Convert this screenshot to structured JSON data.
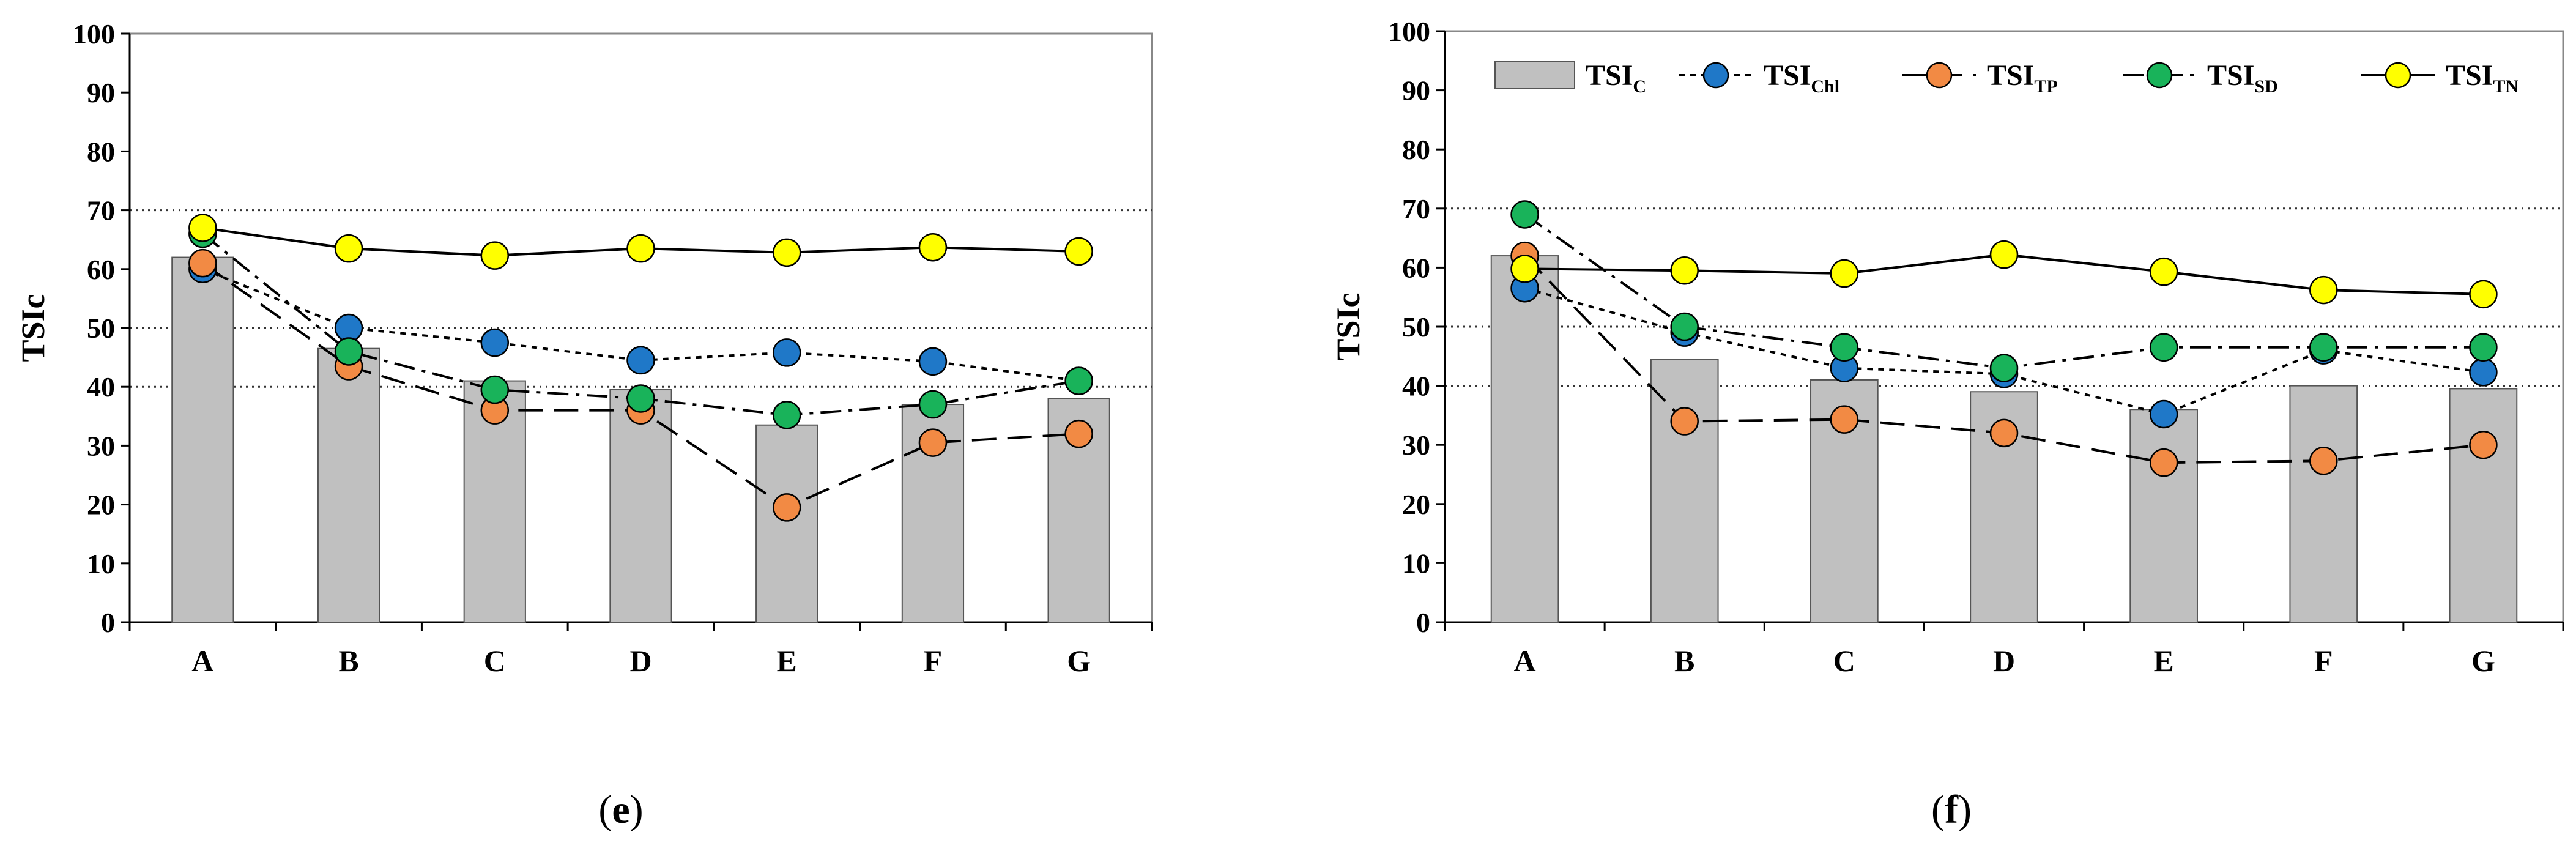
{
  "chart_data": [
    {
      "type": "bar+line",
      "panel_label": "e",
      "ylabel": "TSIc",
      "xlabel": "",
      "ylim": [
        0,
        100
      ],
      "yticks": [
        0,
        10,
        20,
        30,
        40,
        50,
        60,
        70,
        80,
        90,
        100
      ],
      "reference_lines": [
        40,
        50,
        70
      ],
      "categories": [
        "A",
        "B",
        "C",
        "D",
        "E",
        "F",
        "G"
      ],
      "show_legend": false,
      "bars": {
        "name": "TSIC",
        "values": [
          62,
          46.5,
          41,
          39.5,
          33.5,
          37,
          38
        ]
      },
      "series": [
        {
          "name": "TSIChl",
          "color": "#1f78c8",
          "line": "short-dash",
          "values": [
            60,
            50,
            47.5,
            44.5,
            45.8,
            44.3,
            41
          ]
        },
        {
          "name": "TSITP",
          "color": "#f28a44",
          "line": "long-dash",
          "values": [
            61,
            43.5,
            36,
            36,
            19.5,
            30.5,
            32
          ]
        },
        {
          "name": "TSISD",
          "color": "#19b35a",
          "line": "dash-dot",
          "values": [
            66,
            46,
            39.5,
            38,
            35.2,
            37,
            41
          ]
        },
        {
          "name": "TSITN",
          "color": "#ffff00",
          "line": "solid",
          "values": [
            67,
            63.5,
            62.3,
            63.5,
            62.8,
            63.7,
            63
          ]
        }
      ]
    },
    {
      "type": "bar+line",
      "panel_label": "f",
      "ylabel": "TSIc",
      "xlabel": "",
      "ylim": [
        0,
        100
      ],
      "yticks": [
        0,
        10,
        20,
        30,
        40,
        50,
        60,
        70,
        80,
        90,
        100
      ],
      "reference_lines": [
        40,
        50,
        70
      ],
      "categories": [
        "A",
        "B",
        "C",
        "D",
        "E",
        "F",
        "G"
      ],
      "show_legend": true,
      "bars": {
        "name": "TSIC",
        "values": [
          62,
          44.5,
          41,
          39,
          36,
          40,
          39.5
        ]
      },
      "series": [
        {
          "name": "TSIChl",
          "color": "#1f78c8",
          "line": "short-dash",
          "values": [
            56.5,
            49,
            43,
            42,
            35.2,
            46,
            42.3
          ]
        },
        {
          "name": "TSITP",
          "color": "#f28a44",
          "line": "long-dash",
          "values": [
            62,
            34,
            34.3,
            32,
            27,
            27.3,
            30
          ]
        },
        {
          "name": "TSISD",
          "color": "#19b35a",
          "line": "dash-dot",
          "values": [
            69,
            50,
            46.5,
            43,
            46.5,
            46.5,
            46.5
          ]
        },
        {
          "name": "TSITN",
          "color": "#ffff00",
          "line": "solid",
          "values": [
            59.8,
            59.5,
            59,
            62.2,
            59.3,
            56.2,
            55.5
          ]
        }
      ]
    }
  ],
  "legend": [
    {
      "key": "TSIC",
      "base": "TSI",
      "sub": "C",
      "kind": "bar"
    },
    {
      "key": "TSIChl",
      "base": "TSI",
      "sub": "Chl",
      "kind": "line",
      "color": "#1f78c8",
      "line": "short-dash"
    },
    {
      "key": "TSITP",
      "base": "TSI",
      "sub": "TP",
      "kind": "line",
      "color": "#f28a44",
      "line": "long-dash"
    },
    {
      "key": "TSISD",
      "base": "TSI",
      "sub": "SD",
      "kind": "line",
      "color": "#19b35a",
      "line": "dash-dot"
    },
    {
      "key": "TSITN",
      "base": "TSI",
      "sub": "TN",
      "kind": "line",
      "color": "#ffff00",
      "line": "solid"
    }
  ],
  "bar_color": "#c0c0c0"
}
